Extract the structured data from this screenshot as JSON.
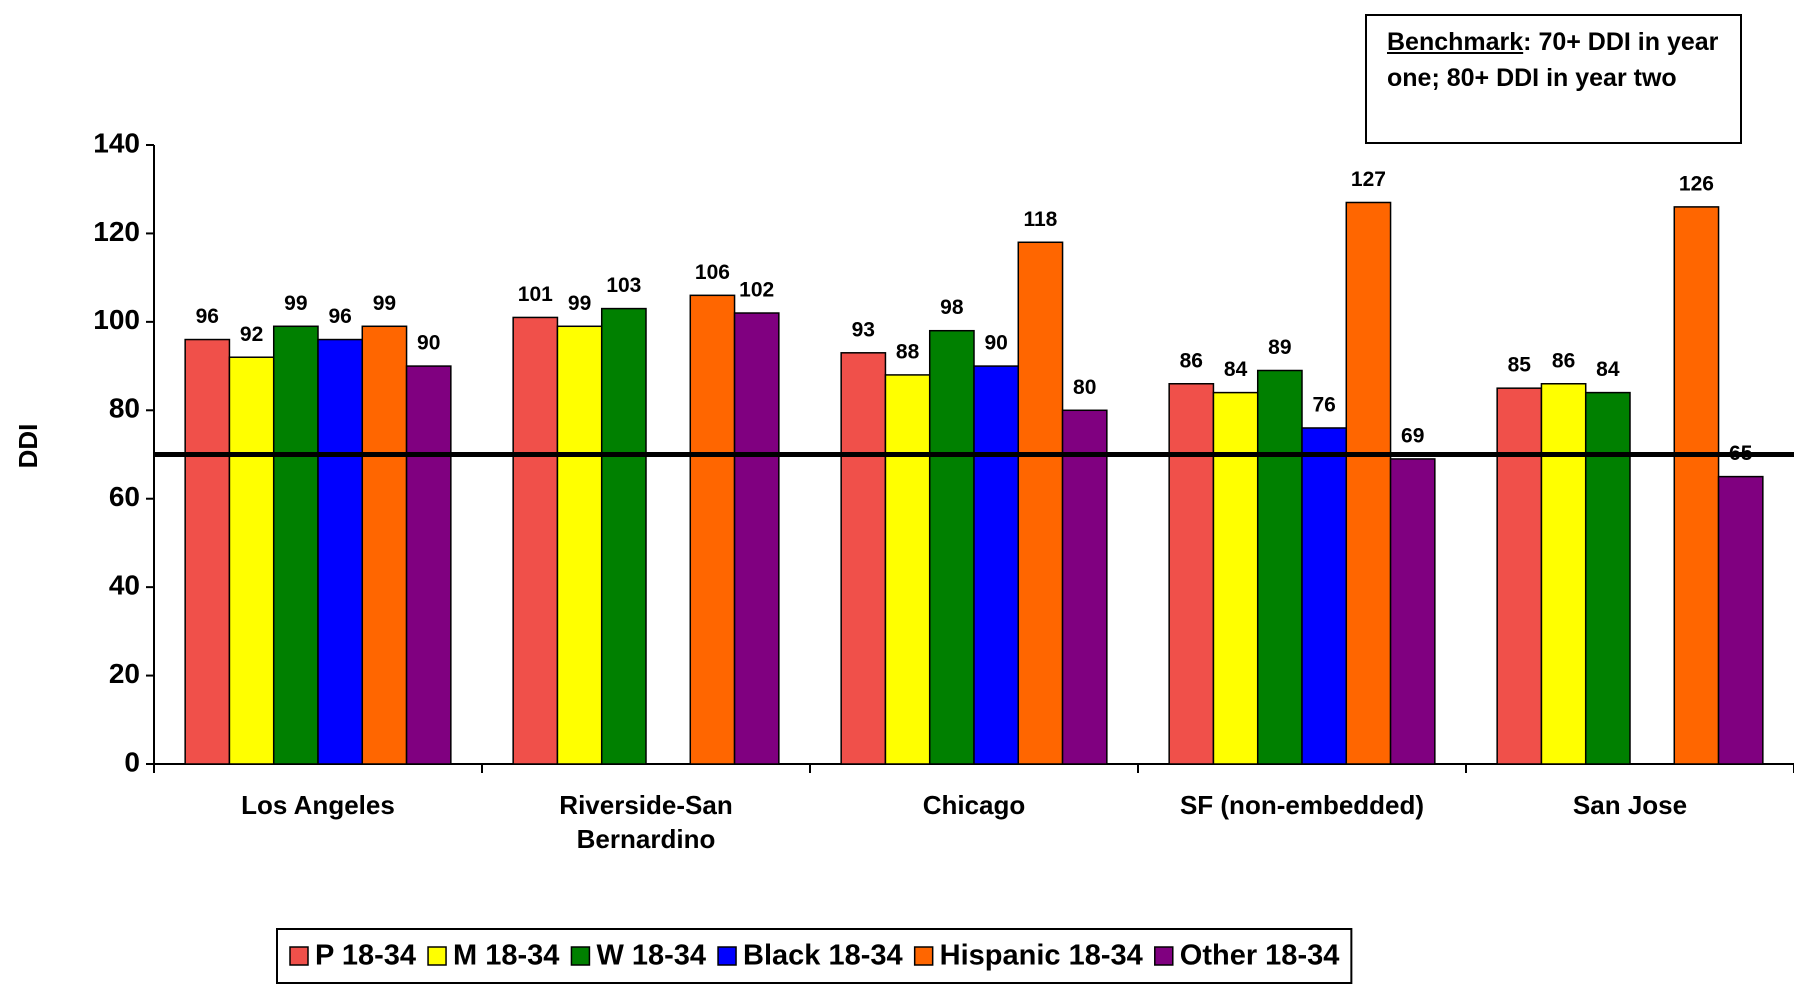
{
  "chart_data": {
    "type": "bar",
    "y_label": "DDI",
    "annotation": {
      "label": "Benchmark",
      "text": ": 70+ DDI in year one; 80+ DDI in year two"
    },
    "reference_line": 70,
    "categories": [
      "Los Angeles",
      "Riverside-San Bernardino",
      "Chicago",
      "SF (non-embedded)",
      "San Jose"
    ],
    "series": [
      {
        "name": "P 18-34",
        "color": "#f0504a",
        "values": [
          96,
          101,
          93,
          86,
          85
        ]
      },
      {
        "name": "M 18-34",
        "color": "#ffff00",
        "values": [
          92,
          99,
          88,
          84,
          86
        ]
      },
      {
        "name": "W 18-34",
        "color": "#008000",
        "values": [
          99,
          103,
          98,
          89,
          84
        ]
      },
      {
        "name": "Black 18-34",
        "color": "#0000ff",
        "values": [
          96,
          null,
          90,
          76,
          null
        ]
      },
      {
        "name": "Hispanic 18-34",
        "color": "#ff6600",
        "values": [
          99,
          106,
          118,
          127,
          126
        ]
      },
      {
        "name": "Other 18-34",
        "color": "#800080",
        "values": [
          90,
          102,
          80,
          69,
          65
        ]
      }
    ],
    "ylim": [
      0,
      140
    ],
    "yticks": [
      0,
      20,
      40,
      60,
      80,
      100,
      120,
      140
    ]
  }
}
